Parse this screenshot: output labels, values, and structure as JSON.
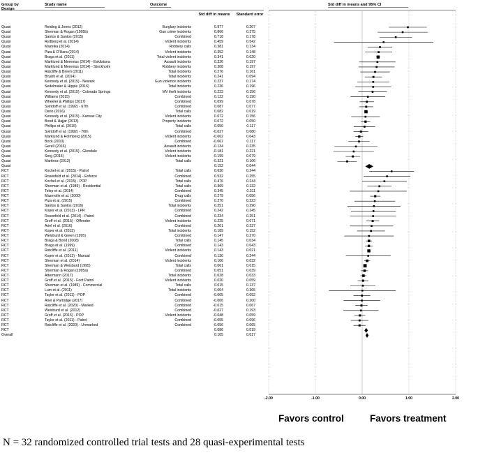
{
  "headers": {
    "group_by": "Group by",
    "design": "Design",
    "study_name": "Study name",
    "outcome": "Outcome",
    "std_diff": "Std diff in means",
    "std_error": "Standard error",
    "forest": "Std diff in means and 95% CI"
  },
  "favors": {
    "left": "Favors control",
    "right": "Favors treatment"
  },
  "footnote": "N = 32 randomized controlled trial tests and 28 quasi-experimental tests",
  "chart_data": {
    "type": "forest",
    "xlim": [
      -2.0,
      2.0
    ],
    "xticks": [
      "-2.00",
      "-1.00",
      "0.00",
      "1.00",
      "2.00"
    ],
    "rows": [
      {
        "design": "Quasi",
        "study": "Reiding & Jones (2012)",
        "outcome": "Burglary incidents",
        "d": "0.977",
        "se": "0.207",
        "kind": "study"
      },
      {
        "design": "Quasi",
        "study": "Sherman & Rogan (1995b)",
        "outcome": "Gun crime incidents",
        "d": "0.866",
        "se": "0.275",
        "kind": "study"
      },
      {
        "design": "Quasi",
        "study": "Santos & Santos (2015)",
        "outcome": "Combined",
        "d": "0.718",
        "se": "0.178",
        "kind": "study"
      },
      {
        "design": "Quasi",
        "study": "Rydberg et al. (2014)",
        "outcome": "Violent incidents",
        "d": "0.459",
        "se": "0.542",
        "kind": "study"
      },
      {
        "design": "Quasi",
        "study": "Mazeika (2014)",
        "outcome": "Robbery calls",
        "d": "0.381",
        "se": "0.134",
        "kind": "study"
      },
      {
        "design": "Quasi",
        "study": "Piza & O'Hara (2014)",
        "outcome": "Violent incidents",
        "d": "0.352",
        "se": "0.148",
        "kind": "study"
      },
      {
        "design": "Quasi",
        "study": "Braga et al. (2011)",
        "outcome": "Total violent incidents",
        "d": "0.341",
        "se": "0.020",
        "kind": "study"
      },
      {
        "design": "Quasi",
        "study": "Marklund & Merenius (2014) - Eskilstuna",
        "outcome": "Assault incidents",
        "d": "0.326",
        "se": "0.197",
        "kind": "study"
      },
      {
        "design": "Quasi",
        "study": "Marklund & Merenius (2014) - Stockholm",
        "outcome": "Robbery incidents",
        "d": "0.308",
        "se": "0.197",
        "kind": "study"
      },
      {
        "design": "Quasi",
        "study": "Ratcliffe & Breen (2011)",
        "outcome": "Total incidents",
        "d": "0.276",
        "se": "0.161",
        "kind": "study"
      },
      {
        "design": "Quasi",
        "study": "Bryant et al. (2014)",
        "outcome": "Total incidents",
        "d": "0.241",
        "se": "0.094",
        "kind": "study"
      },
      {
        "design": "Quasi",
        "study": "Kennedy et al. (2015) - Newark",
        "outcome": "Gun violence incidents",
        "d": "0.237",
        "se": "0.174",
        "kind": "study"
      },
      {
        "design": "Quasi",
        "study": "Sedelmaier & Hipple (2016)",
        "outcome": "Total incidents",
        "d": "0.236",
        "se": "0.196",
        "kind": "study"
      },
      {
        "design": "Quasi",
        "study": "Kennedy et al. (2015) - Colorado Springs",
        "outcome": "MV theft incidents",
        "d": "0.223",
        "se": "0.156",
        "kind": "study"
      },
      {
        "design": "Quasi",
        "study": "Williams (2015)",
        "outcome": "Combined",
        "d": "0.122",
        "se": "0.190",
        "kind": "study"
      },
      {
        "design": "Quasi",
        "study": "Wheeler & Phillips (2017)",
        "outcome": "Combined",
        "d": "0.099",
        "se": "0.078",
        "kind": "study"
      },
      {
        "design": "Quasi",
        "study": "Sviridoff et al. (1992) - 67th",
        "outcome": "Combined",
        "d": "0.087",
        "se": "0.077",
        "kind": "study"
      },
      {
        "design": "Quasi",
        "study": "Dario (2016)",
        "outcome": "Total calls",
        "d": "0.082",
        "se": "0.019",
        "kind": "study"
      },
      {
        "design": "Quasi",
        "study": "Kennedy et al. (2015) - Kansas City",
        "outcome": "Violent incidents",
        "d": "0.072",
        "se": "0.156",
        "kind": "study"
      },
      {
        "design": "Quasi",
        "study": "Bond & Hajjar (2013)",
        "outcome": "Property incidents",
        "d": "0.072",
        "se": "0.050",
        "kind": "study"
      },
      {
        "design": "Quasi",
        "study": "Phillips et al. (2016)",
        "outcome": "Total calls",
        "d": "0.050",
        "se": "0.117",
        "kind": "study"
      },
      {
        "design": "Quasi",
        "study": "Sviridoff et al. (1992) - 70th",
        "outcome": "Combined",
        "d": "-0.027",
        "se": "0.080",
        "kind": "study"
      },
      {
        "design": "Quasi",
        "study": "Marklund & Holmberg (2015)",
        "outcome": "Violent incidents",
        "d": "-0.062",
        "se": "0.043",
        "kind": "study"
      },
      {
        "design": "Quasi",
        "study": "Bock (2010)",
        "outcome": "Combined",
        "d": "-0.067",
        "se": "0.117",
        "kind": "study"
      },
      {
        "design": "Quasi",
        "study": "Gerell (2016)",
        "outcome": "Assault incidents",
        "d": "-0.134",
        "se": "0.235",
        "kind": "study"
      },
      {
        "design": "Quasi",
        "study": "Kennedy et al. (2015) - Glendale",
        "outcome": "Violent incidents",
        "d": "-0.181",
        "se": "0.221",
        "kind": "study"
      },
      {
        "design": "Quasi",
        "study": "Sorg (2015)",
        "outcome": "Violent incidents",
        "d": "-0.199",
        "se": "0.079",
        "kind": "study"
      },
      {
        "design": "Quasi",
        "study": "Martinez (2013)",
        "outcome": "Total calls",
        "d": "-0.321",
        "se": "0.106",
        "kind": "study"
      },
      {
        "design": "Quasi",
        "study": "",
        "outcome": "",
        "d": "0.152",
        "se": "0.044",
        "kind": "pooled"
      },
      {
        "design": "RCT",
        "study": "Kochel et al. (2015) - Patrol",
        "outcome": "Total calls",
        "d": "0.630",
        "se": "0.244",
        "kind": "study"
      },
      {
        "design": "RCT",
        "study": "Rosenfeld et al. (2014) - Enforce",
        "outcome": "Combined",
        "d": "0.532",
        "se": "0.255",
        "kind": "study"
      },
      {
        "design": "RCT",
        "study": "Kochel et al. (2015) - POP",
        "outcome": "Total calls",
        "d": "0.476",
        "se": "0.244",
        "kind": "study"
      },
      {
        "design": "RCT",
        "study": "Sherman et al. (1989) - Residential",
        "outcome": "Total calls",
        "d": "0.369",
        "se": "0.132",
        "kind": "study"
      },
      {
        "design": "RCT",
        "study": "Telep et al. (2014)",
        "outcome": "Combined",
        "d": "0.345",
        "se": "0.311",
        "kind": "study"
      },
      {
        "design": "RCT",
        "study": "Mazerolle et al. (2000)",
        "outcome": "Drug calls",
        "d": "0.279",
        "se": "0.056",
        "kind": "study"
      },
      {
        "design": "RCT",
        "study": "Piza et al. (2015)",
        "outcome": "Combined",
        "d": "0.270",
        "se": "0.223",
        "kind": "study"
      },
      {
        "design": "RCT",
        "study": "Santos & Santos (2016)",
        "outcome": "Total incidents",
        "d": "0.251",
        "se": "0.290",
        "kind": "study"
      },
      {
        "design": "RCT",
        "study": "Koper et al. (2013) - LPR",
        "outcome": "Combined",
        "d": "0.242",
        "se": "0.245",
        "kind": "study"
      },
      {
        "design": "RCT",
        "study": "Rosenfeld et al. (2014) - Patrol",
        "outcome": "Combined",
        "d": "0.234",
        "se": "0.251",
        "kind": "study"
      },
      {
        "design": "RCT",
        "study": "Groff et al. (2015) - Offender",
        "outcome": "Violent incidents",
        "d": "0.225",
        "se": "0.071",
        "kind": "study"
      },
      {
        "design": "RCT",
        "study": "Ariel et al. (2016)",
        "outcome": "Combined",
        "d": "0.201",
        "se": "0.237",
        "kind": "study"
      },
      {
        "design": "RCT",
        "study": "Koper et al. (2015)",
        "outcome": "Total incidents",
        "d": "0.189",
        "se": "0.152",
        "kind": "study"
      },
      {
        "design": "RCT",
        "study": "Weisburd & Green (1995)",
        "outcome": "Combined",
        "d": "0.147",
        "se": "0.270",
        "kind": "study"
      },
      {
        "design": "RCT",
        "study": "Braga & Bond (2008)",
        "outcome": "Total calls",
        "d": "0.145",
        "se": "0.034",
        "kind": "study"
      },
      {
        "design": "RCT",
        "study": "Braga et al. (1999)",
        "outcome": "Combined",
        "d": "0.143",
        "se": "0.043",
        "kind": "study"
      },
      {
        "design": "RCT",
        "study": "Ratcliffe et al. (2011)",
        "outcome": "Violent incidents",
        "d": "0.143",
        "se": "0.021",
        "kind": "study"
      },
      {
        "design": "RCT",
        "study": "Koper et al. (2013) - Manual",
        "outcome": "Combined",
        "d": "0.130",
        "se": "0.244",
        "kind": "study"
      },
      {
        "design": "RCT",
        "study": "Sherman et al. (2014)",
        "outcome": "Violent incidents",
        "d": "0.106",
        "se": "0.032",
        "kind": "study"
      },
      {
        "design": "RCT",
        "study": "Sherman & Weisburd (1995)",
        "outcome": "Total calls",
        "d": "0.061",
        "se": "0.015",
        "kind": "study"
      },
      {
        "design": "RCT",
        "study": "Sherman & Rogan (1995a)",
        "outcome": "Combined",
        "d": "0.051",
        "se": "0.039",
        "kind": "study"
      },
      {
        "design": "RCT",
        "study": "Attermann (2017)",
        "outcome": "Total incidents",
        "d": "0.028",
        "se": "0.033",
        "kind": "study"
      },
      {
        "design": "RCT",
        "study": "Groff et al. (2015) - Foot Patrol",
        "outcome": "Violent incidents",
        "d": "0.020",
        "se": "0.059",
        "kind": "study"
      },
      {
        "design": "RCT",
        "study": "Sherman et al. (1989) - Commercial",
        "outcome": "Total calls",
        "d": "0.015",
        "se": "0.137",
        "kind": "study"
      },
      {
        "design": "RCT",
        "study": "Lum et al. (2011)",
        "outcome": "Total incidents",
        "d": "0.004",
        "se": "0.365",
        "kind": "study"
      },
      {
        "design": "RCT",
        "study": "Taylor et al. (2011) - POP",
        "outcome": "Combined",
        "d": "-0.005",
        "se": "0.092",
        "kind": "study"
      },
      {
        "design": "RCT",
        "study": "Ariel & Partridge (2017)",
        "outcome": "Combined",
        "d": "-0.006",
        "se": "0.200",
        "kind": "study"
      },
      {
        "design": "RCT",
        "study": "Ratcliffe et al. (2020) - Marked",
        "outcome": "Combined",
        "d": "-0.015",
        "se": "0.067",
        "kind": "study"
      },
      {
        "design": "RCT",
        "study": "Weisburd et al. (2012)",
        "outcome": "Combined",
        "d": "-0.027",
        "se": "0.193",
        "kind": "study"
      },
      {
        "design": "RCT",
        "study": "Groff et al. (2015) - POP",
        "outcome": "Violent incidents",
        "d": "-0.048",
        "se": "0.059",
        "kind": "study"
      },
      {
        "design": "RCT",
        "study": "Taylor et al. (2011) - Patrol",
        "outcome": "Combined",
        "d": "-0.055",
        "se": "0.096",
        "kind": "study"
      },
      {
        "design": "RCT",
        "study": "Ratcliffe et al. (2020) - Unmarked",
        "outcome": "Combined",
        "d": "-0.056",
        "se": "0.065",
        "kind": "study"
      },
      {
        "design": "RCT",
        "study": "",
        "outcome": "",
        "d": "0.086",
        "se": "0.019",
        "kind": "pooled"
      },
      {
        "design": "Overall",
        "study": "",
        "outcome": "",
        "d": "0.105",
        "se": "0.017",
        "kind": "pooled"
      }
    ]
  }
}
